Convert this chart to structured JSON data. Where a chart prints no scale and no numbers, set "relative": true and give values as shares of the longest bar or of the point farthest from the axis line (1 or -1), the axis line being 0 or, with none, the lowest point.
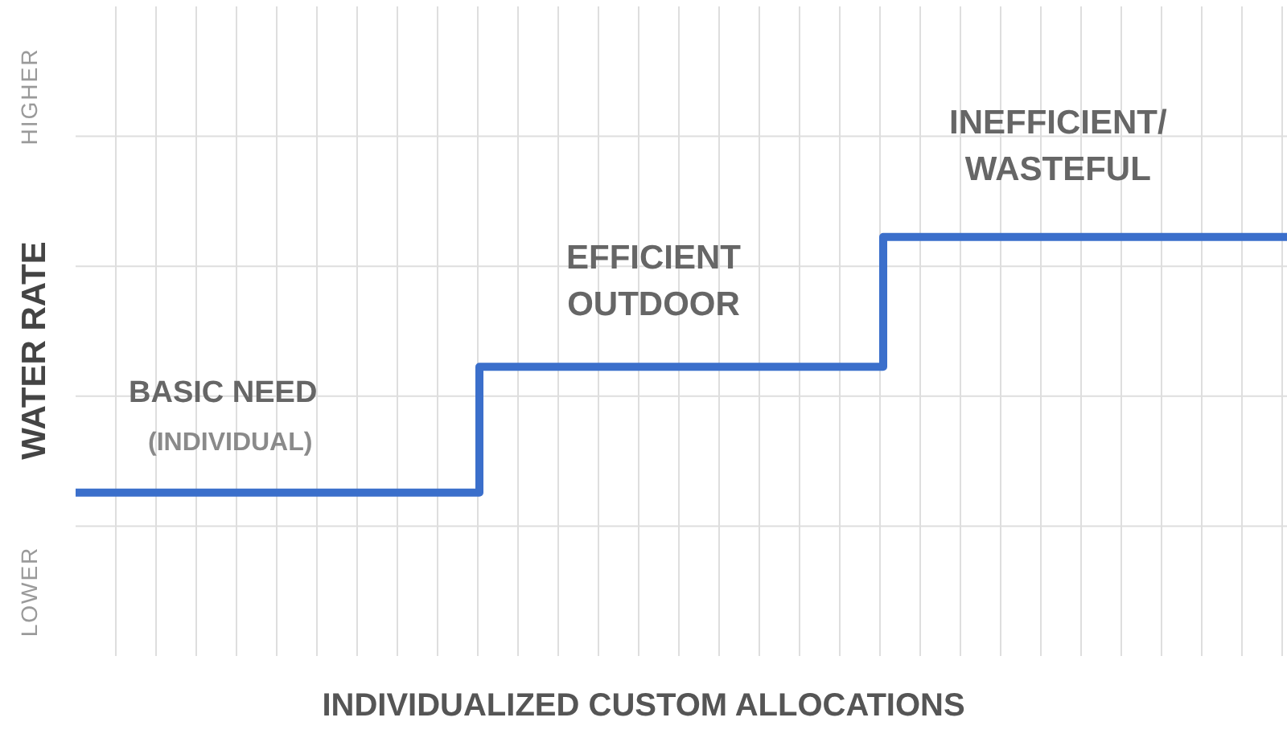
{
  "chart_data": {
    "type": "step",
    "relative": true,
    "categories": [
      null,
      null,
      null,
      null
    ],
    "series": [
      {
        "color": "#3b6fcb",
        "values": [
          0.39,
          0.69,
          1,
          1
        ]
      }
    ],
    "ylabel": "WATER RATE",
    "xlabel": "INDIVIDUALIZED CUSTOM ALLOCATIONS",
    "grid": true,
    "marker": "none",
    "annotations": [
      "BASIC NEED",
      "(INDIVIDUAL)",
      "EFFICIENT\nOUTDOOR",
      "INEFFICIENT/\nWASTEFUL",
      "LOWER",
      "HIGHER"
    ]
  }
}
